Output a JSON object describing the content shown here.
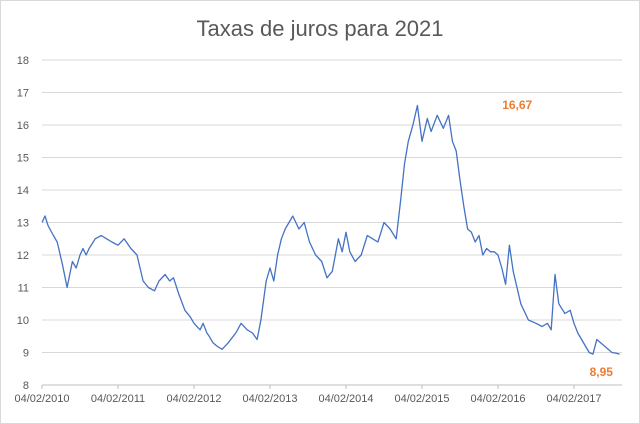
{
  "chart_data": {
    "type": "line",
    "title": "Taxas de juros para 2021",
    "xlabel": "",
    "ylabel": "",
    "ylim": [
      8,
      18
    ],
    "y_ticks": [
      8,
      9,
      10,
      11,
      12,
      13,
      14,
      15,
      16,
      17,
      18
    ],
    "x_tick_labels": [
      "04/02/2010",
      "04/02/2011",
      "04/02/2012",
      "04/02/2013",
      "04/02/2014",
      "04/02/2015",
      "04/02/2016",
      "04/02/2017"
    ],
    "grid": "horizontal",
    "legend": "none",
    "series_color": "#4472c4",
    "annotation_color": "#ed7d31",
    "annotations": [
      {
        "label": "16,67",
        "x": 2015.95,
        "y": 16.67
      },
      {
        "label": "8,95",
        "x": 2017.6,
        "y": 8.95
      }
    ],
    "series": [
      {
        "x": [
          2010.0,
          2010.04,
          2010.08,
          2010.15,
          2010.2,
          2010.27,
          2010.33,
          2010.4,
          2010.45,
          2010.5,
          2010.54,
          2010.58,
          2010.62,
          2010.7,
          2010.78,
          2010.85,
          2010.92,
          2011.0,
          2011.08,
          2011.17,
          2011.25,
          2011.33,
          2011.4,
          2011.48,
          2011.54,
          2011.62,
          2011.68,
          2011.73,
          2011.8,
          2011.88,
          2011.95,
          2012.0,
          2012.08,
          2012.12,
          2012.17,
          2012.2,
          2012.25,
          2012.3,
          2012.37,
          2012.45,
          2012.55,
          2012.62,
          2012.7,
          2012.77,
          2012.83,
          2012.88,
          2012.95,
          2013.0,
          2013.05,
          2013.1,
          2013.15,
          2013.2,
          2013.3,
          2013.38,
          2013.45,
          2013.52,
          2013.6,
          2013.68,
          2013.75,
          2013.82,
          2013.9,
          2013.95,
          2014.0,
          2014.05,
          2014.12,
          2014.2,
          2014.28,
          2014.35,
          2014.42,
          2014.5,
          2014.58,
          2014.66,
          2014.72,
          2014.77,
          2014.82,
          2014.88,
          2014.94,
          2015.0,
          2015.07,
          2015.12,
          2015.2,
          2015.28,
          2015.35,
          2015.4,
          2015.45,
          2015.5,
          2015.55,
          2015.6,
          2015.65,
          2015.7,
          2015.75,
          2015.8,
          2015.85,
          2015.9,
          2015.95,
          2016.0,
          2016.05,
          2016.1,
          2016.15,
          2016.2,
          2016.25,
          2016.3,
          2016.4,
          2016.5,
          2016.58,
          2016.65,
          2016.7,
          2016.75,
          2016.8,
          2016.88,
          2016.95,
          2017.0,
          2017.05,
          2017.1,
          2017.15,
          2017.2,
          2017.25,
          2017.3,
          2017.35,
          2017.4,
          2017.45,
          2017.5,
          2017.55,
          2017.6
        ],
        "y": [
          13.0,
          13.2,
          12.9,
          12.6,
          12.4,
          11.7,
          11.0,
          11.8,
          11.6,
          12.0,
          12.2,
          12.0,
          12.2,
          12.5,
          12.6,
          12.5,
          12.4,
          12.3,
          12.5,
          12.2,
          12.0,
          11.2,
          11.0,
          10.9,
          11.2,
          11.4,
          11.2,
          11.3,
          10.8,
          10.3,
          10.1,
          9.9,
          9.7,
          9.9,
          9.6,
          9.5,
          9.3,
          9.2,
          9.1,
          9.3,
          9.6,
          9.9,
          9.7,
          9.6,
          9.4,
          10.0,
          11.2,
          11.6,
          11.2,
          12.0,
          12.5,
          12.8,
          13.2,
          12.8,
          13.0,
          12.4,
          12.0,
          11.8,
          11.3,
          11.5,
          12.5,
          12.1,
          12.7,
          12.1,
          11.8,
          12.0,
          12.6,
          12.5,
          12.4,
          13.0,
          12.8,
          12.5,
          13.7,
          14.8,
          15.5,
          16.0,
          16.6,
          15.5,
          16.2,
          15.8,
          16.3,
          15.9,
          16.3,
          15.5,
          15.2,
          14.3,
          13.5,
          12.8,
          12.7,
          12.4,
          12.6,
          12.0,
          12.2,
          12.1,
          12.1,
          12.0,
          11.6,
          11.1,
          12.3,
          11.5,
          11.0,
          10.5,
          10.0,
          9.9,
          9.8,
          9.9,
          9.7,
          11.4,
          10.5,
          10.2,
          10.3,
          9.9,
          9.6,
          9.4,
          9.2,
          9.0,
          8.95,
          9.4,
          9.3,
          9.2,
          9.1,
          9.0,
          8.98,
          8.95
        ]
      }
    ]
  }
}
